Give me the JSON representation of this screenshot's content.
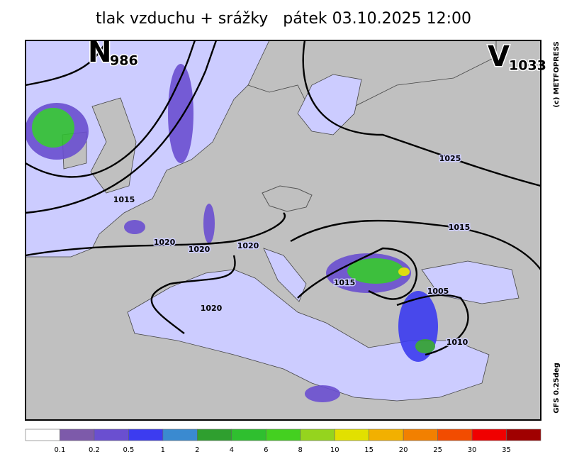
{
  "title": "tlak vzduchu + srážky   pátek 03.10.2025 12:00",
  "pressure_centers": [
    {
      "letter": "N",
      "value": "986"
    },
    {
      "letter": "V",
      "value": "1033"
    }
  ],
  "isobar_labels": [
    "1015",
    "1020",
    "1020",
    "1020",
    "1020",
    "1025",
    "1015",
    "1015",
    "1005",
    "1010"
  ],
  "copyright": "(c) METFOPRESS",
  "model": "GFS 0.25deg",
  "legend": {
    "labels": [
      0.1,
      0.2,
      0.5,
      1,
      2,
      4,
      6,
      8,
      10,
      15,
      20,
      25,
      30,
      35
    ],
    "colors": [
      "#ffffff",
      "#7d5aaa",
      "#6a4fd0",
      "#3c3cf0",
      "#3a8ad0",
      "#2f9f2f",
      "#2fbf2f",
      "#44d020",
      "#95d41e",
      "#e2e000",
      "#f2b000",
      "#f28000",
      "#f24c00",
      "#f00000",
      "#a00000"
    ]
  }
}
